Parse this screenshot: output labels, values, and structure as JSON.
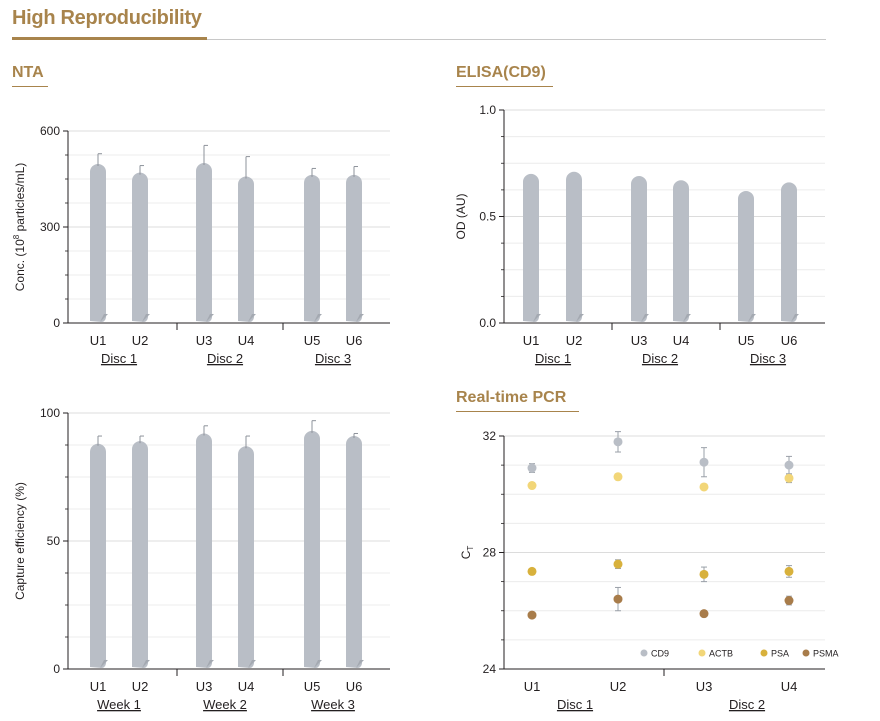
{
  "page": {
    "title": "High Reproducibility",
    "sections": {
      "nta": "NTA",
      "elisa": "ELISA(CD9)",
      "capture": "",
      "pcr": "Real-time PCR"
    }
  },
  "colors": {
    "accent": "#a8844c",
    "bar": "#b9bec6",
    "grid": "#dcdcdc",
    "cd9": "#b9bec6",
    "actb": "#f2d678",
    "psa": "#d8b13c",
    "psma": "#a87c4a"
  },
  "chart_data": [
    {
      "id": "nta",
      "type": "bar",
      "title": "NTA",
      "ylabel_pre": "Conc. (10",
      "ylabel_sup": "8",
      "ylabel_post": " particles/mL)",
      "ylim": [
        0,
        600
      ],
      "yticks": [
        0,
        300,
        600
      ],
      "categories": [
        "U1",
        "U2",
        "U3",
        "U4",
        "U5",
        "U6"
      ],
      "values": [
        497,
        470,
        500,
        458,
        463,
        463
      ],
      "errors": [
        32,
        22,
        55,
        62,
        20,
        26
      ],
      "groups": [
        "Disc 1",
        "Disc 2",
        "Disc 3"
      ],
      "grid": true
    },
    {
      "id": "elisa",
      "type": "bar",
      "title": "ELISA(CD9)",
      "ylabel": "OD (AU)",
      "ylim": [
        0,
        1.0
      ],
      "yticks": [
        "0.0",
        "0.5",
        "1.0"
      ],
      "yticks_values": [
        0,
        0.5,
        1.0
      ],
      "categories": [
        "U1",
        "U2",
        "U3",
        "U4",
        "U5",
        "U6"
      ],
      "values": [
        0.7,
        0.71,
        0.69,
        0.67,
        0.62,
        0.66
      ],
      "groups": [
        "Disc 1",
        "Disc 2",
        "Disc 3"
      ],
      "grid": true
    },
    {
      "id": "capture",
      "type": "bar",
      "ylabel": "Capture efficiency (%)",
      "ylim": [
        0,
        100
      ],
      "yticks": [
        0,
        50,
        100
      ],
      "categories": [
        "U1",
        "U2",
        "U3",
        "U4",
        "U5",
        "U6"
      ],
      "values": [
        88,
        89,
        92,
        87,
        93,
        91
      ],
      "errors": [
        3,
        2,
        3,
        4,
        4,
        1
      ],
      "groups": [
        "Week 1",
        "Week 2",
        "Week 3"
      ],
      "grid": true
    },
    {
      "id": "pcr",
      "type": "scatter",
      "title": "Real-time PCR",
      "ylabel": "C",
      "ylabel_sub": "T",
      "ylim": [
        24,
        32
      ],
      "yticks": [
        24,
        28,
        32
      ],
      "categories": [
        "U1",
        "U2",
        "U3",
        "U4"
      ],
      "groups": [
        "Disc 1",
        "Disc 2"
      ],
      "series": [
        {
          "name": "CD9",
          "values": [
            30.9,
            31.8,
            31.1,
            31.0
          ],
          "errors": [
            0.15,
            0.35,
            0.5,
            0.3
          ]
        },
        {
          "name": "ACTB",
          "values": [
            30.3,
            30.6,
            30.25,
            30.55
          ],
          "errors": [
            0.1,
            0.1,
            0.1,
            0.15
          ]
        },
        {
          "name": "PSA",
          "values": [
            27.35,
            27.6,
            27.25,
            27.35
          ],
          "errors": [
            0.1,
            0.15,
            0.25,
            0.2
          ]
        },
        {
          "name": "PSMA",
          "values": [
            25.85,
            26.4,
            25.9,
            26.35
          ],
          "errors": [
            0.1,
            0.4,
            0.1,
            0.15
          ]
        }
      ],
      "legend_position": "bottom-right",
      "grid": true
    }
  ]
}
